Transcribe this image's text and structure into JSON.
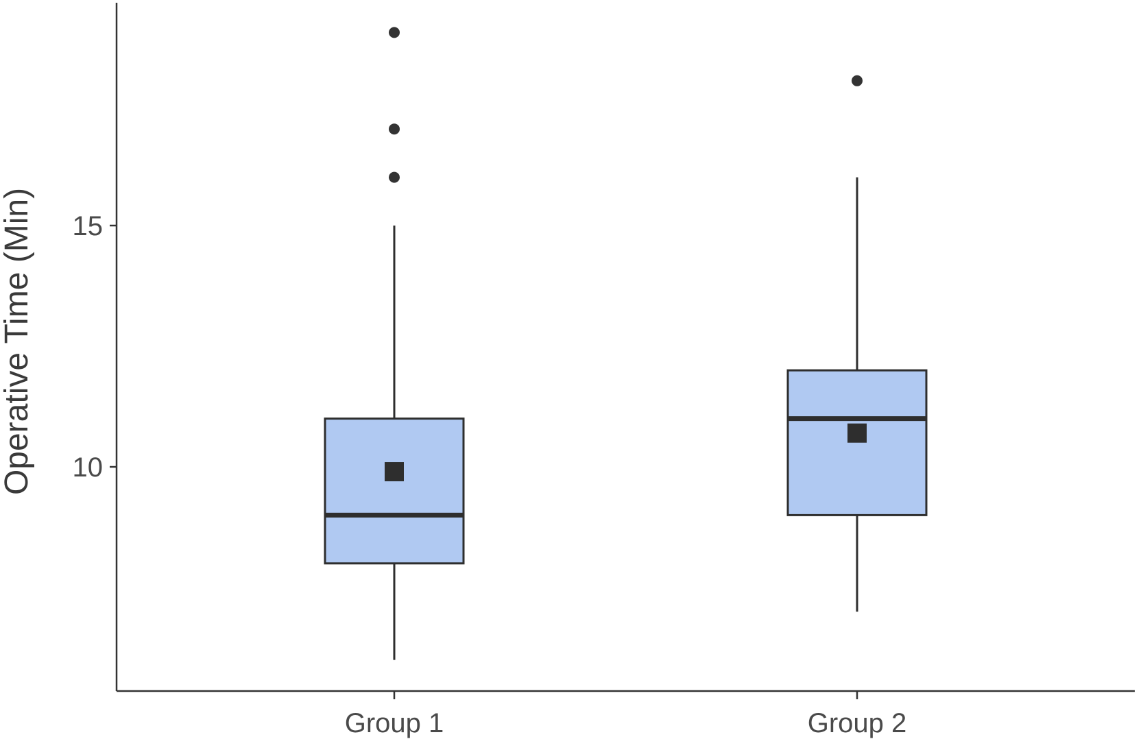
{
  "chart_data": {
    "type": "box",
    "title": "",
    "xlabel": "",
    "ylabel": "Operative Time (Min)",
    "ylim": [
      5.5,
      19.7
    ],
    "yticks": [
      10,
      15
    ],
    "grid": false,
    "legend": "none",
    "box_fill": "#b0c9f2",
    "categories": [
      "Group 1",
      "Group 2"
    ],
    "boxes": [
      {
        "category": "Group 1",
        "whisker_low": 6,
        "q1": 8,
        "median": 9,
        "q3": 11,
        "whisker_high": 15,
        "mean": 9.9,
        "outliers": [
          16,
          17,
          19
        ]
      },
      {
        "category": "Group 2",
        "whisker_low": 7,
        "q1": 9,
        "median": 11,
        "q3": 12,
        "whisker_high": 16,
        "mean": 10.7,
        "outliers": [
          18
        ]
      }
    ]
  }
}
